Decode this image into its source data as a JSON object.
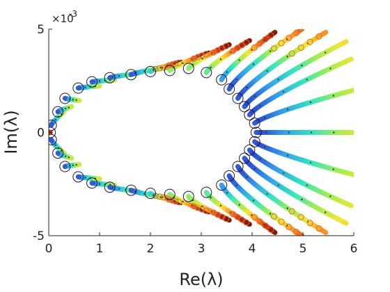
{
  "chart_data": {
    "type": "scatter",
    "title": "",
    "xlabel": "Re(λ)",
    "ylabel": "Im(λ)",
    "y_scale_label": "×10",
    "y_scale_exponent": "-3",
    "xlim": [
      0,
      6
    ],
    "ylim": [
      -5,
      5
    ],
    "x_ticks": [
      "0",
      "1",
      "2",
      "3",
      "4",
      "5",
      "6"
    ],
    "y_ticks": [
      "5",
      "0",
      "-5"
    ],
    "grid": false,
    "colormap": [
      "#2a3cc9",
      "#2f9df4",
      "#2ee6c0",
      "#9ff04a",
      "#f6e432",
      "#fb8a22",
      "#d3300b",
      "#7a1403"
    ],
    "colors": {
      "marker_circle": "#1a1040",
      "open_circle": "#e06a2b",
      "star": "#333333"
    },
    "branches": [
      {
        "start": [
          0.05,
          0.35
        ],
        "end": [
          0.3,
          1.0
        ],
        "segment": [
          0.0,
          0.5
        ]
      },
      {
        "start": [
          0.18,
          1.0
        ],
        "end": [
          0.45,
          1.25
        ],
        "segment": [
          0.0,
          0.5
        ]
      },
      {
        "start": [
          0.32,
          1.65
        ],
        "end": [
          0.6,
          1.55
        ],
        "segment": [
          0.0,
          0.5
        ]
      },
      {
        "start": [
          0.58,
          2.15
        ],
        "end": [
          1.0,
          2.25
        ],
        "segment": [
          0.0,
          0.5
        ]
      },
      {
        "start": [
          0.85,
          2.45
        ],
        "end": [
          1.3,
          2.55
        ],
        "segment": [
          0.0,
          0.5
        ]
      },
      {
        "start": [
          1.2,
          2.65
        ],
        "end": [
          1.75,
          2.85
        ],
        "segment": [
          0.0,
          0.5
        ]
      },
      {
        "start": [
          1.62,
          2.8
        ],
        "end": [
          2.4,
          3.2
        ],
        "segment": [
          0.0,
          0.75
        ]
      },
      {
        "start": [
          2.0,
          2.95
        ],
        "end": [
          2.6,
          3.4
        ],
        "segment": [
          0.2,
          1.0
        ]
      },
      {
        "start": [
          2.38,
          3.0
        ],
        "end": [
          3.15,
          3.85
        ],
        "segment": [
          0.35,
          1.0
        ]
      },
      {
        "start": [
          2.75,
          3.1
        ],
        "end": [
          3.55,
          4.25
        ],
        "segment": [
          0.35,
          1.0
        ]
      },
      {
        "start": [
          3.1,
          2.9
        ],
        "end": [
          3.95,
          4.45
        ],
        "segment": [
          0.3,
          1.0
        ]
      },
      {
        "start": [
          3.4,
          2.55
        ],
        "end": [
          4.45,
          4.85
        ],
        "segment": [
          0.1,
          1.0
        ]
      },
      {
        "start": [
          3.55,
          2.1
        ],
        "end": [
          4.98,
          5.0
        ],
        "segment": [
          0.0,
          0.78
        ]
      },
      {
        "start": [
          3.72,
          1.65
        ],
        "end": [
          5.45,
          4.85
        ],
        "segment": [
          0.0,
          0.72
        ]
      },
      {
        "start": [
          3.85,
          1.25
        ],
        "end": [
          5.85,
          4.4
        ],
        "segment": [
          0.0,
          0.6
        ]
      },
      {
        "start": [
          3.95,
          0.85
        ],
        "end": [
          5.95,
          3.55
        ],
        "segment": [
          0.0,
          0.55
        ]
      },
      {
        "start": [
          4.05,
          0.45
        ],
        "end": [
          6.0,
          2.05
        ],
        "segment": [
          0.0,
          0.5
        ]
      },
      {
        "start": [
          4.08,
          0.0
        ],
        "end": [
          6.0,
          0.0
        ],
        "segment": [
          0.0,
          0.5
        ]
      }
    ]
  }
}
